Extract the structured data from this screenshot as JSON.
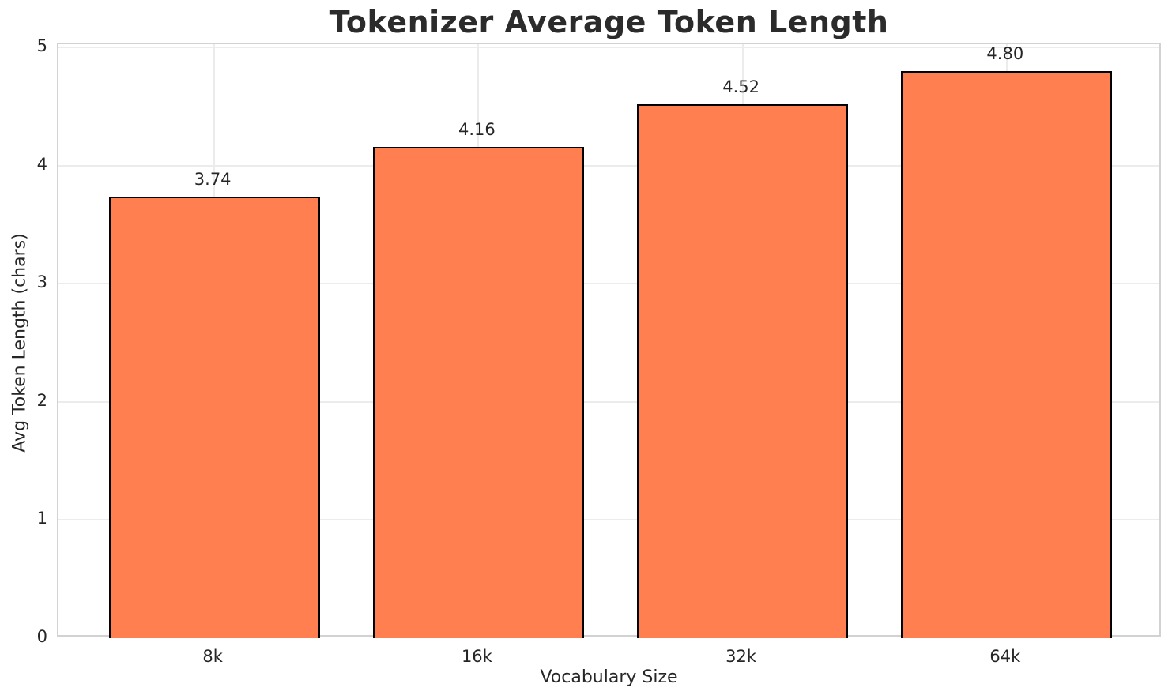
{
  "chart_data": {
    "type": "bar",
    "title": "Tokenizer Average Token Length",
    "xlabel": "Vocabulary Size",
    "ylabel": "Avg Token Length (chars)",
    "categories": [
      "8k",
      "16k",
      "32k",
      "64k"
    ],
    "values": [
      3.74,
      4.16,
      4.52,
      4.8
    ],
    "value_labels": [
      "3.74",
      "4.16",
      "4.52",
      "4.80"
    ],
    "yticks": [
      0,
      1,
      2,
      3,
      4,
      5
    ],
    "ytick_labels": [
      "0",
      "1",
      "2",
      "3",
      "4",
      "5"
    ],
    "ylim": [
      0,
      5.03
    ],
    "xlim": [
      -0.59,
      3.59
    ],
    "bar_width_fraction": 0.8,
    "grid": true,
    "legend": null,
    "colors": {
      "bar_fill": "#FF7F50",
      "bar_edge": "#000000",
      "grid": "#ececec",
      "spine": "#d2d2d2",
      "text": "#262626",
      "title": "#2b2b2b"
    }
  }
}
